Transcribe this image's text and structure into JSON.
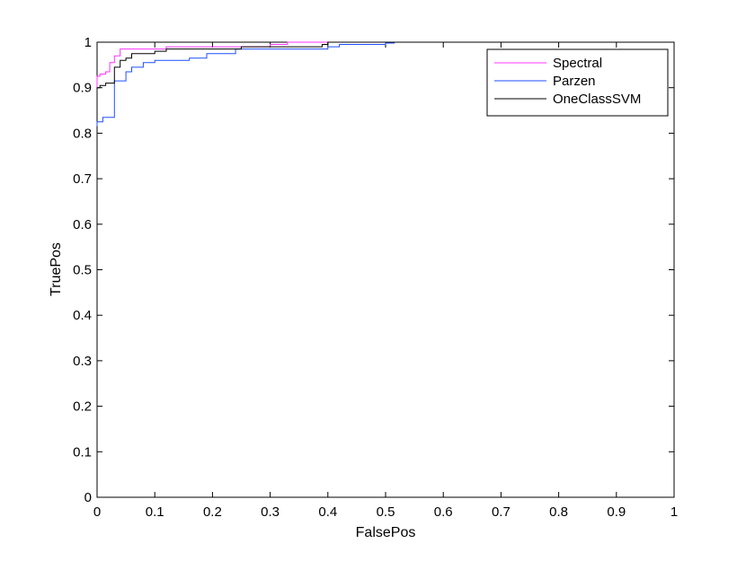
{
  "colors": {
    "Spectral": "#ff33ff",
    "Parzen": "#1f4fff",
    "OneClassSVM": "#000000"
  },
  "chart_data": {
    "type": "line",
    "title": "",
    "xlabel": "FalsePos",
    "ylabel": "TruePos",
    "xlim": [
      0,
      1
    ],
    "ylim": [
      0,
      1
    ],
    "xticks": [
      "0",
      "0.1",
      "0.2",
      "0.3",
      "0.4",
      "0.5",
      "0.6",
      "0.7",
      "0.8",
      "0.9",
      "1"
    ],
    "yticks": [
      "0",
      "0.1",
      "0.2",
      "0.3",
      "0.4",
      "0.5",
      "0.6",
      "0.7",
      "0.8",
      "0.9",
      "1"
    ],
    "grid": false,
    "legend": "top-right",
    "series": [
      {
        "name": "Spectral",
        "x": [
          0,
          0,
          0.005,
          0.005,
          0.015,
          0.015,
          0.022,
          0.022,
          0.03,
          0.03,
          0.04,
          0.04,
          0.12,
          0.12,
          0.3,
          0.3,
          0.33,
          0.33,
          1
        ],
        "y": [
          0.895,
          0.925,
          0.925,
          0.93,
          0.93,
          0.935,
          0.935,
          0.955,
          0.955,
          0.97,
          0.97,
          0.985,
          0.985,
          0.99,
          0.99,
          0.995,
          0.995,
          1,
          1
        ]
      },
      {
        "name": "Parzen",
        "x": [
          0,
          0,
          0.01,
          0.01,
          0.03,
          0.03,
          0.05,
          0.05,
          0.06,
          0.06,
          0.08,
          0.08,
          0.1,
          0.1,
          0.16,
          0.16,
          0.19,
          0.19,
          0.24,
          0.24,
          0.4,
          0.4,
          0.42,
          0.42,
          0.5,
          0.5,
          0.515,
          0.515,
          1
        ],
        "y": [
          0.815,
          0.825,
          0.825,
          0.835,
          0.835,
          0.915,
          0.915,
          0.935,
          0.935,
          0.945,
          0.945,
          0.955,
          0.955,
          0.96,
          0.96,
          0.965,
          0.965,
          0.975,
          0.975,
          0.985,
          0.985,
          0.99,
          0.99,
          0.995,
          0.995,
          0.998,
          0.998,
          1,
          1
        ]
      },
      {
        "name": "OneClassSVM",
        "x": [
          0,
          0,
          0.005,
          0.005,
          0.015,
          0.015,
          0.03,
          0.03,
          0.04,
          0.04,
          0.05,
          0.05,
          0.06,
          0.06,
          0.1,
          0.1,
          0.12,
          0.12,
          0.25,
          0.25,
          0.39,
          0.39,
          0.4,
          0.4,
          1
        ],
        "y": [
          0.895,
          0.9,
          0.9,
          0.905,
          0.905,
          0.91,
          0.91,
          0.945,
          0.945,
          0.96,
          0.96,
          0.965,
          0.965,
          0.975,
          0.975,
          0.98,
          0.98,
          0.985,
          0.985,
          0.99,
          0.99,
          0.995,
          0.995,
          1,
          1
        ]
      }
    ]
  }
}
